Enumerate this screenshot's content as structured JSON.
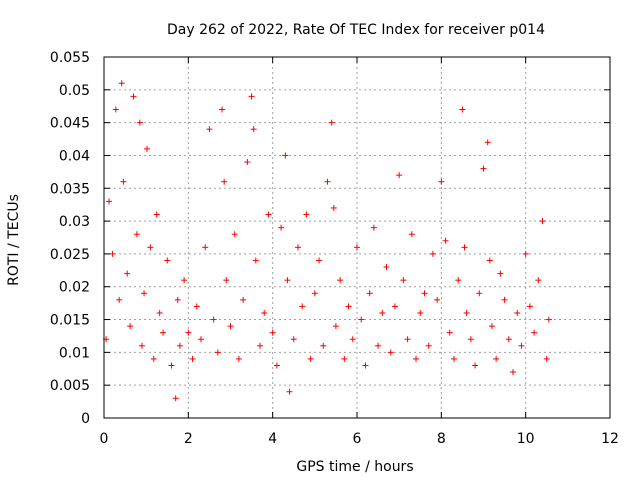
{
  "chart_data": {
    "type": "scatter",
    "title": "Day 262 of 2022, Rate Of TEC Index for receiver p014",
    "xlabel": "GPS time / hours",
    "ylabel": "ROTI / TECUs",
    "xlim": [
      0,
      12
    ],
    "ylim": [
      0,
      0.055
    ],
    "xticks": [
      "0",
      "2",
      "4",
      "6",
      "8",
      "10",
      "12"
    ],
    "yticks": [
      "0",
      "0.005",
      "0.01",
      "0.015",
      "0.02",
      "0.025",
      "0.03",
      "0.035",
      "0.04",
      "0.045",
      "0.05",
      "0.055"
    ],
    "grid": true,
    "marker": "+",
    "color": "#ff0000",
    "series": [
      {
        "name": "ROTI",
        "x": [
          0.05,
          0.12,
          0.2,
          0.28,
          0.36,
          0.42,
          0.46,
          0.55,
          0.62,
          0.7,
          0.78,
          0.85,
          0.9,
          0.95,
          1.02,
          1.1,
          1.18,
          1.25,
          1.32,
          1.4,
          1.5,
          1.6,
          1.7,
          1.75,
          1.8,
          1.9,
          2.0,
          2.1,
          2.2,
          2.3,
          2.4,
          2.5,
          2.6,
          2.7,
          2.8,
          2.85,
          2.9,
          3.0,
          3.1,
          3.2,
          3.3,
          3.4,
          3.5,
          3.55,
          3.6,
          3.7,
          3.8,
          3.9,
          4.0,
          4.1,
          4.2,
          4.3,
          4.35,
          4.4,
          4.5,
          4.6,
          4.7,
          4.8,
          4.9,
          5.0,
          5.1,
          5.2,
          5.3,
          5.4,
          5.45,
          5.5,
          5.6,
          5.7,
          5.8,
          5.9,
          6.0,
          6.1,
          6.2,
          6.3,
          6.4,
          6.5,
          6.6,
          6.7,
          6.8,
          6.9,
          7.0,
          7.1,
          7.2,
          7.3,
          7.4,
          7.5,
          7.6,
          7.7,
          7.8,
          7.9,
          8.0,
          8.1,
          8.2,
          8.3,
          8.4,
          8.5,
          8.55,
          8.6,
          8.7,
          8.8,
          8.9,
          9.0,
          9.1,
          9.15,
          9.2,
          9.3,
          9.4,
          9.5,
          9.6,
          9.7,
          9.8,
          9.9,
          10.0,
          10.1,
          10.2,
          10.3,
          10.4,
          10.5,
          10.55
        ],
        "y": [
          0.012,
          0.033,
          0.025,
          0.047,
          0.018,
          0.051,
          0.036,
          0.022,
          0.014,
          0.049,
          0.028,
          0.045,
          0.011,
          0.019,
          0.041,
          0.026,
          0.009,
          0.031,
          0.016,
          0.013,
          0.024,
          0.008,
          0.003,
          0.018,
          0.011,
          0.021,
          0.013,
          0.009,
          0.017,
          0.012,
          0.026,
          0.044,
          0.015,
          0.01,
          0.047,
          0.036,
          0.021,
          0.014,
          0.028,
          0.009,
          0.018,
          0.039,
          0.049,
          0.044,
          0.024,
          0.011,
          0.016,
          0.031,
          0.013,
          0.008,
          0.029,
          0.04,
          0.021,
          0.004,
          0.012,
          0.026,
          0.017,
          0.031,
          0.009,
          0.019,
          0.024,
          0.011,
          0.036,
          0.045,
          0.032,
          0.014,
          0.021,
          0.009,
          0.017,
          0.012,
          0.026,
          0.015,
          0.008,
          0.019,
          0.029,
          0.011,
          0.016,
          0.023,
          0.01,
          0.017,
          0.037,
          0.021,
          0.012,
          0.028,
          0.009,
          0.016,
          0.019,
          0.011,
          0.025,
          0.018,
          0.036,
          0.027,
          0.013,
          0.009,
          0.021,
          0.047,
          0.026,
          0.016,
          0.012,
          0.008,
          0.019,
          0.038,
          0.042,
          0.024,
          0.014,
          0.009,
          0.022,
          0.018,
          0.012,
          0.007,
          0.016,
          0.011,
          0.025,
          0.017,
          0.013,
          0.021,
          0.03,
          0.009,
          0.015
        ]
      }
    ]
  }
}
